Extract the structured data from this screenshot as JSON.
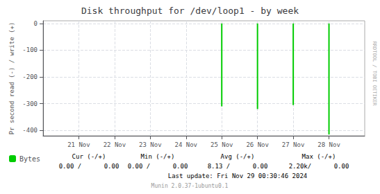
{
  "chart_data": {
    "type": "bar",
    "title": "Disk throughput for /dev/loop1 - by week",
    "ylabel": "Pr second read (-) / write (+)",
    "x": [
      1732492800,
      1732579200,
      1732665600,
      1732752000
    ],
    "series": [
      {
        "name": "Bytes",
        "color": "#00cc00",
        "values": [
          -310,
          -320,
          -305,
          -415
        ]
      }
    ],
    "xlim": [
      1732060800,
      1732838400
    ],
    "xticks": [
      {
        "value": 1732147200,
        "label": "21 Nov"
      },
      {
        "value": 1732233600,
        "label": "22 Nov"
      },
      {
        "value": 1732320000,
        "label": "23 Nov"
      },
      {
        "value": 1732406400,
        "label": "24 Nov"
      },
      {
        "value": 1732492800,
        "label": "25 Nov"
      },
      {
        "value": 1732579200,
        "label": "26 Nov"
      },
      {
        "value": 1732665600,
        "label": "27 Nov"
      },
      {
        "value": 1732752000,
        "label": "28 Nov"
      }
    ],
    "ylim": [
      -420,
      10
    ],
    "yticks": [
      0,
      -100,
      -200,
      -300,
      -400
    ],
    "grid": true,
    "legend": "bottom",
    "annotations": [
      "Cur (-/+)",
      "Min (-/+)",
      "Avg (-/+)",
      "Max (-/+)",
      "0.00 /      0.00",
      "0.00 /      0.00",
      "8.13 /      0.00",
      "2.20k/      0.00",
      "Last update: Fri Nov 29 00:30:46 2024",
      "Munin 2.0.37-1ubuntu0.1",
      "RRDTOOL / TOBI OETIKER"
    ]
  }
}
